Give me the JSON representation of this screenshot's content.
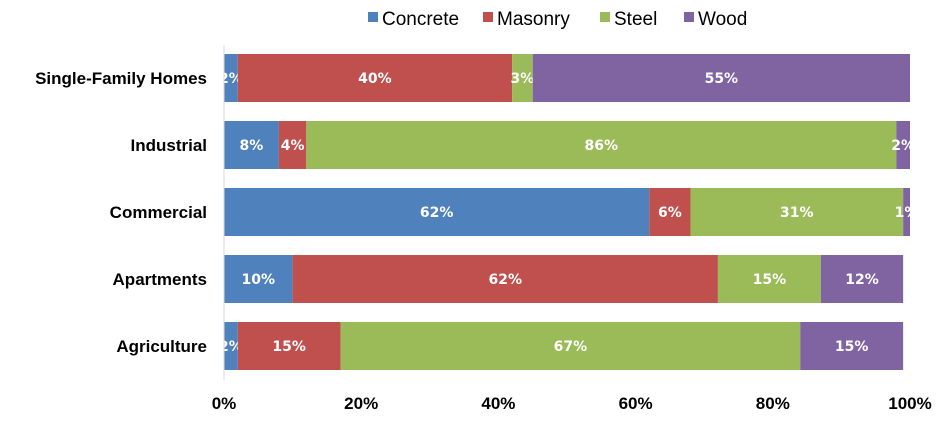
{
  "chart_data": {
    "type": "bar",
    "orientation": "horizontal",
    "stacked": "percent",
    "categories": [
      "Single-Family Homes",
      "Industrial",
      "Commercial",
      "Apartments",
      "Agriculture"
    ],
    "series": [
      {
        "name": "Concrete",
        "color": "#4F81BD",
        "values": [
          2,
          8,
          62,
          10,
          2
        ],
        "value_labels": [
          "2%",
          "8%",
          "62%",
          "10%",
          "2%"
        ]
      },
      {
        "name": "Masonry",
        "color": "#C0504D",
        "values": [
          40,
          4,
          6,
          62,
          15
        ],
        "value_labels": [
          "40%",
          "4%",
          "6%",
          "62%",
          "15%"
        ]
      },
      {
        "name": "Steel",
        "color": "#9BBB59",
        "values": [
          3,
          86,
          31,
          15,
          67
        ],
        "value_labels": [
          "3%",
          "86%",
          "31%",
          "15%",
          "67%"
        ]
      },
      {
        "name": "Wood",
        "color": "#8064A2",
        "values": [
          55,
          2,
          1,
          12,
          15
        ],
        "value_labels": [
          "55%",
          "2%",
          "1%",
          "12%",
          "15%"
        ]
      }
    ],
    "xticks": [
      "0%",
      "20%",
      "40%",
      "60%",
      "80%",
      "100%"
    ],
    "xlim": [
      0,
      100
    ],
    "legend": "top",
    "grid": false
  }
}
